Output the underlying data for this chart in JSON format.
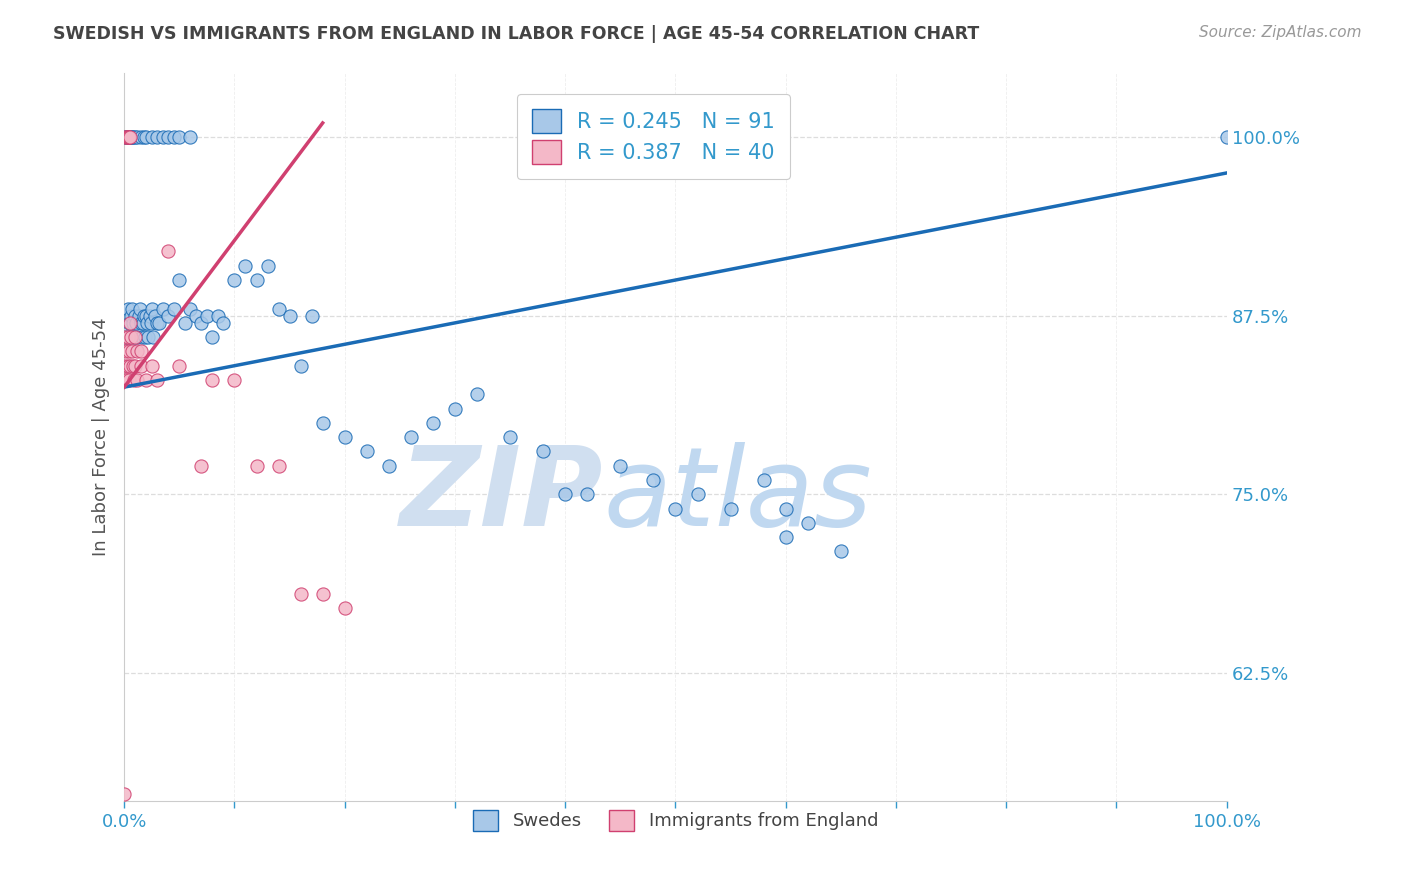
{
  "title": "SWEDISH VS IMMIGRANTS FROM ENGLAND IN LABOR FORCE | AGE 45-54 CORRELATION CHART",
  "source": "Source: ZipAtlas.com",
  "ylabel": "In Labor Force | Age 45-54",
  "ytick_labels": [
    "100.0%",
    "87.5%",
    "75.0%",
    "62.5%"
  ],
  "ytick_values": [
    1.0,
    0.875,
    0.75,
    0.625
  ],
  "legend_blue_label": "Swedes",
  "legend_pink_label": "Immigrants from England",
  "R_blue": 0.245,
  "N_blue": 91,
  "R_pink": 0.387,
  "N_pink": 40,
  "blue_color": "#a8c8e8",
  "pink_color": "#f4b8c8",
  "line_blue": "#1a6bb5",
  "line_pink": "#d04070",
  "title_color": "#444444",
  "axis_label_color": "#3399cc",
  "watermark_zip_color": "#d0dff0",
  "watermark_atlas_color": "#c0d8f0",
  "xlim": [
    0.0,
    1.0
  ],
  "ylim": [
    0.535,
    1.045
  ],
  "blue_x": [
    0.002,
    0.003,
    0.004,
    0.005,
    0.006,
    0.007,
    0.008,
    0.009,
    0.01,
    0.011,
    0.012,
    0.013,
    0.014,
    0.015,
    0.016,
    0.017,
    0.018,
    0.019,
    0.02,
    0.021,
    0.022,
    0.023,
    0.024,
    0.025,
    0.026,
    0.028,
    0.03,
    0.032,
    0.035,
    0.04,
    0.045,
    0.05,
    0.055,
    0.06,
    0.065,
    0.07,
    0.075,
    0.08,
    0.085,
    0.09,
    0.1,
    0.11,
    0.12,
    0.13,
    0.14,
    0.15,
    0.16,
    0.17,
    0.18,
    0.2,
    0.22,
    0.24,
    0.26,
    0.28,
    0.3,
    0.32,
    0.35,
    0.38,
    0.4,
    0.42,
    0.45,
    0.48,
    0.5,
    0.52,
    0.55,
    0.58,
    0.6,
    0.6,
    0.62,
    0.65,
    0.001,
    0.002,
    0.003,
    0.004,
    0.005,
    0.006,
    0.007,
    0.008,
    0.01,
    0.012,
    0.015,
    0.018,
    0.02,
    0.025,
    0.03,
    0.035,
    0.04,
    0.045,
    0.05,
    0.06,
    1.0
  ],
  "blue_y": [
    0.86,
    0.88,
    0.87,
    0.86,
    0.875,
    0.88,
    0.87,
    0.86,
    0.875,
    0.87,
    0.86,
    0.875,
    0.88,
    0.87,
    0.86,
    0.87,
    0.875,
    0.86,
    0.875,
    0.87,
    0.86,
    0.875,
    0.87,
    0.88,
    0.86,
    0.875,
    0.87,
    0.87,
    0.88,
    0.875,
    0.88,
    0.9,
    0.87,
    0.88,
    0.875,
    0.87,
    0.875,
    0.86,
    0.875,
    0.87,
    0.9,
    0.91,
    0.9,
    0.91,
    0.88,
    0.875,
    0.84,
    0.875,
    0.8,
    0.79,
    0.78,
    0.77,
    0.79,
    0.8,
    0.81,
    0.82,
    0.79,
    0.78,
    0.75,
    0.75,
    0.77,
    0.76,
    0.74,
    0.75,
    0.74,
    0.76,
    0.72,
    0.74,
    0.73,
    0.71,
    1.0,
    1.0,
    1.0,
    1.0,
    1.0,
    1.0,
    1.0,
    1.0,
    1.0,
    1.0,
    1.0,
    1.0,
    1.0,
    1.0,
    1.0,
    1.0,
    1.0,
    1.0,
    1.0,
    1.0,
    1.0
  ],
  "pink_x": [
    0.0,
    0.001,
    0.001,
    0.002,
    0.002,
    0.003,
    0.003,
    0.004,
    0.004,
    0.005,
    0.005,
    0.006,
    0.007,
    0.008,
    0.009,
    0.01,
    0.01,
    0.012,
    0.012,
    0.015,
    0.015,
    0.02,
    0.025,
    0.03,
    0.04,
    0.05,
    0.07,
    0.08,
    0.1,
    0.12,
    0.14,
    0.16,
    0.18,
    0.2,
    0.001,
    0.002,
    0.003,
    0.003,
    0.004,
    0.005
  ],
  "pink_y": [
    0.54,
    0.86,
    0.84,
    0.83,
    0.85,
    0.86,
    0.84,
    0.83,
    0.85,
    0.87,
    0.84,
    0.86,
    0.85,
    0.84,
    0.83,
    0.86,
    0.84,
    0.85,
    0.83,
    0.85,
    0.84,
    0.83,
    0.84,
    0.83,
    0.92,
    0.84,
    0.77,
    0.83,
    0.83,
    0.77,
    0.77,
    0.68,
    0.68,
    0.67,
    1.0,
    1.0,
    1.0,
    1.0,
    1.0,
    1.0
  ],
  "blue_line_x0": 0.0,
  "blue_line_y0": 0.825,
  "blue_line_x1": 1.0,
  "blue_line_y1": 0.975,
  "pink_line_x0": 0.0,
  "pink_line_y0": 0.825,
  "pink_line_x1": 0.18,
  "pink_line_y1": 1.01
}
